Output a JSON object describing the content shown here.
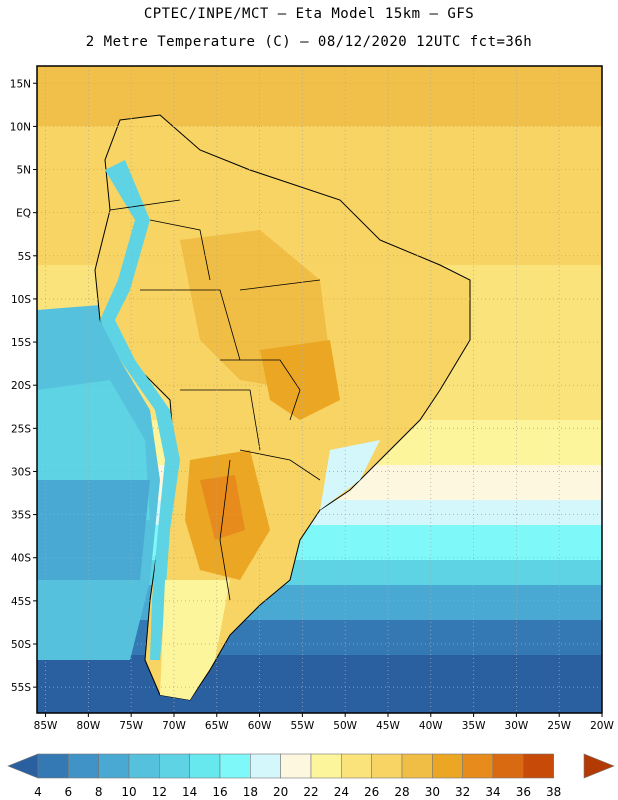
{
  "header": {
    "line1": "CPTEC/INPE/MCT –  Eta Model 15km – GFS",
    "line2": "2 Metre Temperature (C) – 08/12/2020 12UTC fct=36h"
  },
  "map": {
    "lon_range": [
      -86,
      -20
    ],
    "lat_range": [
      -58,
      17
    ],
    "lon_ticks": [
      {
        "value": -85,
        "label": "85W"
      },
      {
        "value": -80,
        "label": "80W"
      },
      {
        "value": -75,
        "label": "75W"
      },
      {
        "value": -70,
        "label": "70W"
      },
      {
        "value": -65,
        "label": "65W"
      },
      {
        "value": -60,
        "label": "60W"
      },
      {
        "value": -55,
        "label": "55W"
      },
      {
        "value": -50,
        "label": "50W"
      },
      {
        "value": -45,
        "label": "45W"
      },
      {
        "value": -40,
        "label": "40W"
      },
      {
        "value": -35,
        "label": "35W"
      },
      {
        "value": -30,
        "label": "30W"
      },
      {
        "value": -25,
        "label": "25W"
      },
      {
        "value": -20,
        "label": "20W"
      }
    ],
    "lat_ticks": [
      {
        "value": 15,
        "label": "15N"
      },
      {
        "value": 10,
        "label": "10N"
      },
      {
        "value": 5,
        "label": "5N"
      },
      {
        "value": 0,
        "label": "EQ"
      },
      {
        "value": -5,
        "label": "5S"
      },
      {
        "value": -10,
        "label": "10S"
      },
      {
        "value": -15,
        "label": "15S"
      },
      {
        "value": -20,
        "label": "20S"
      },
      {
        "value": -25,
        "label": "25S"
      },
      {
        "value": -30,
        "label": "30S"
      },
      {
        "value": -35,
        "label": "35S"
      },
      {
        "value": -40,
        "label": "40S"
      },
      {
        "value": -45,
        "label": "45S"
      },
      {
        "value": -50,
        "label": "50S"
      },
      {
        "value": -55,
        "label": "55S"
      }
    ]
  },
  "colorbar": {
    "labels": [
      "4",
      "6",
      "8",
      "10",
      "12",
      "14",
      "16",
      "18",
      "20",
      "22",
      "24",
      "26",
      "28",
      "30",
      "32",
      "34",
      "36",
      "38"
    ],
    "colors": [
      "#2a5fa0",
      "#3478b4",
      "#3f93c6",
      "#4aa9d3",
      "#56c1dc",
      "#5dd3e3",
      "#66e8ee",
      "#7ef8f8",
      "#d4f7fb",
      "#fdf7e0",
      "#fdf59b",
      "#fbe37c",
      "#f7d464",
      "#f0bd45",
      "#eba624",
      "#e68b1c",
      "#d96a12",
      "#c84a08",
      "#b33a05"
    ]
  }
}
